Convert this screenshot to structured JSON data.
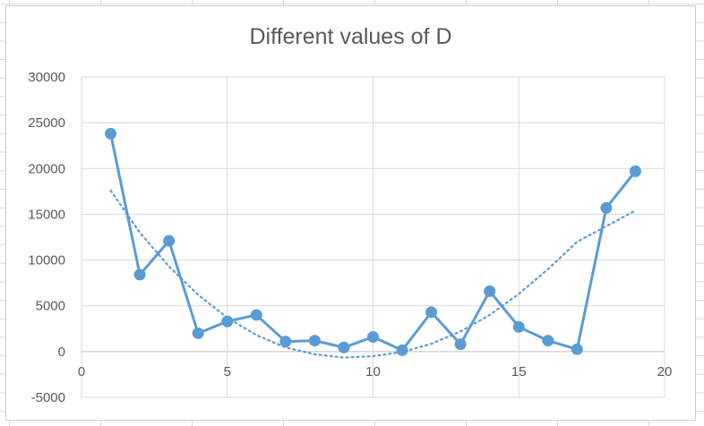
{
  "chart_data": {
    "type": "scatter",
    "title": "Different values of D",
    "xlabel": "",
    "ylabel": "",
    "xlim": [
      0,
      20
    ],
    "ylim": [
      -5000,
      30000
    ],
    "x_ticks": [
      "0",
      "5",
      "10",
      "15",
      "20"
    ],
    "y_ticks": [
      "30000",
      "25000",
      "20000",
      "15000",
      "10000",
      "5000",
      "0",
      "-5000"
    ],
    "grid": true,
    "legend": "none",
    "series": [
      {
        "style": "line-with-markers",
        "color": "#5b9bd5",
        "x": [
          1,
          2,
          3,
          4,
          5,
          6,
          7,
          8,
          9,
          10,
          11,
          12,
          13,
          14,
          15,
          16,
          17,
          18,
          19
        ],
        "y": [
          23800,
          8400,
          12100,
          2000,
          3300,
          4000,
          1100,
          1200,
          450,
          1600,
          150,
          4300,
          800,
          6600,
          2700,
          1200,
          250,
          15700,
          19700
        ]
      },
      {
        "style": "dotted-trendline",
        "color": "#5b9bd5",
        "x": [
          1,
          2,
          3,
          4,
          5,
          6,
          7,
          8,
          9,
          10,
          11,
          12,
          13,
          14,
          15,
          16,
          17,
          18,
          19
        ],
        "y": [
          17600,
          13000,
          9300,
          6200,
          3700,
          1800,
          450,
          -300,
          -650,
          -500,
          -50,
          850,
          2200,
          4000,
          6300,
          9000,
          12000,
          13700,
          15400
        ]
      }
    ]
  }
}
